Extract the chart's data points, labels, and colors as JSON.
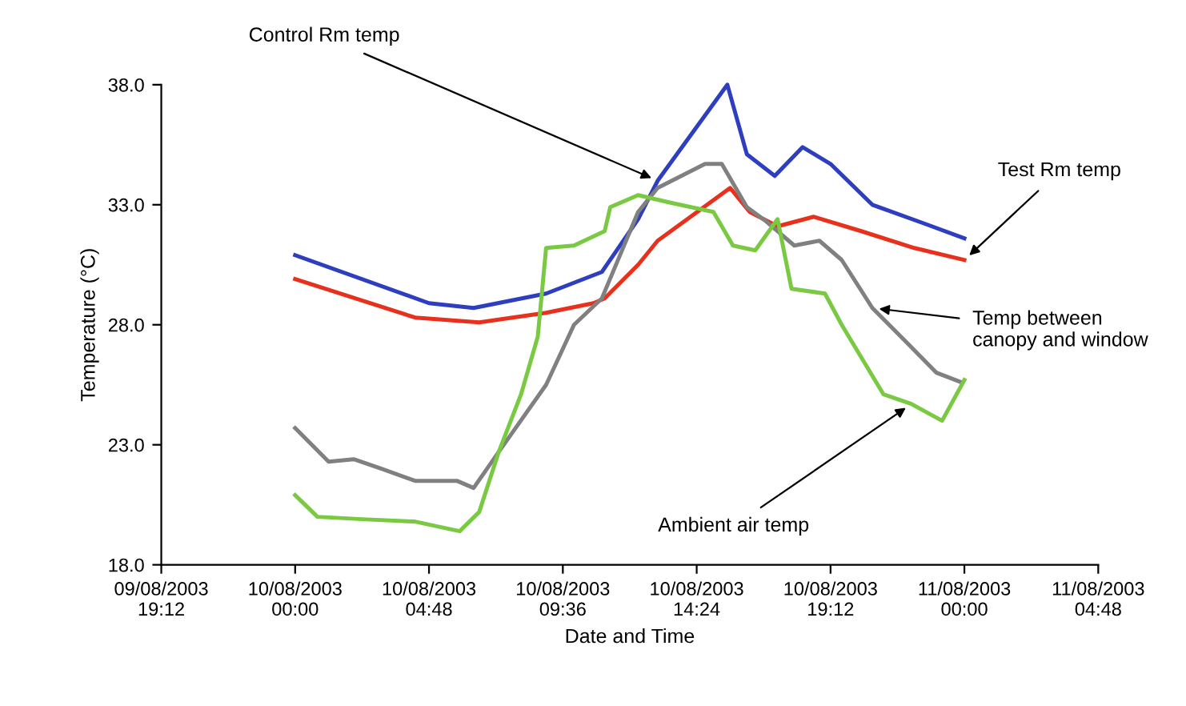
{
  "chart_data": {
    "type": "line",
    "xlabel": "Date and Time",
    "ylabel": "Temperature (°C)",
    "xlim": [
      "2003-08-09T19:12",
      "2003-08-11T04:48"
    ],
    "ylim": [
      18,
      38
    ],
    "xticks": [
      {
        "value": "2003-08-09T19:12",
        "label": "09/08/2003\n19:12"
      },
      {
        "value": "2003-08-10T00:00",
        "label": "10/08/2003\n00:00"
      },
      {
        "value": "2003-08-10T04:48",
        "label": "10/08/2003\n04:48"
      },
      {
        "value": "2003-08-10T09:36",
        "label": "10/08/2003\n09:36"
      },
      {
        "value": "2003-08-10T14:24",
        "label": "10/08/2003\n14:24"
      },
      {
        "value": "2003-08-10T19:12",
        "label": "10/08/2003\n19:12"
      },
      {
        "value": "2003-08-11T00:00",
        "label": "11/08/2003\n00:00"
      },
      {
        "value": "2003-08-11T04:48",
        "label": "11/08/2003\n04:48"
      }
    ],
    "yticks": [
      {
        "value": 18,
        "label": "18.0"
      },
      {
        "value": 23,
        "label": "23.0"
      },
      {
        "value": 28,
        "label": "28.0"
      },
      {
        "value": 33,
        "label": "33.0"
      },
      {
        "value": 38,
        "label": "38.0"
      }
    ],
    "grid": false,
    "legend": false,
    "marker": "none",
    "line_style": "solid",
    "series": [
      {
        "color": "#2d3fbf",
        "x": [
          "2003-08-10T00:00",
          "2003-08-10T04:48",
          "2003-08-10T06:24",
          "2003-08-10T09:00",
          "2003-08-10T11:00",
          "2003-08-10T12:18",
          "2003-08-10T13:00",
          "2003-08-10T15:30",
          "2003-08-10T16:12",
          "2003-08-10T17:12",
          "2003-08-10T18:12",
          "2003-08-10T19:12",
          "2003-08-10T20:42",
          "2003-08-10T22:36",
          "2003-08-11T00:00"
        ],
        "values": [
          30.9,
          28.9,
          28.7,
          29.3,
          30.2,
          32.4,
          34.0,
          38.0,
          35.1,
          34.2,
          35.4,
          34.7,
          33.0,
          32.2,
          31.6
        ]
      },
      {
        "color": "#e8311c",
        "x": [
          "2003-08-10T00:00",
          "2003-08-10T04:18",
          "2003-08-10T06:36",
          "2003-08-10T09:00",
          "2003-08-10T10:42",
          "2003-08-10T11:06",
          "2003-08-10T12:18",
          "2003-08-10T13:00",
          "2003-08-10T15:36",
          "2003-08-10T16:18",
          "2003-08-10T17:18",
          "2003-08-10T18:36",
          "2003-08-10T20:18",
          "2003-08-10T22:12",
          "2003-08-11T00:00"
        ],
        "values": [
          29.9,
          28.3,
          28.1,
          28.5,
          28.9,
          29.1,
          30.5,
          31.5,
          33.7,
          32.7,
          32.1,
          32.5,
          31.9,
          31.2,
          30.7
        ]
      },
      {
        "color": "#808080",
        "x": [
          "2003-08-10T00:00",
          "2003-08-10T01:12",
          "2003-08-10T02:06",
          "2003-08-10T03:06",
          "2003-08-10T04:18",
          "2003-08-10T05:48",
          "2003-08-10T06:24",
          "2003-08-10T07:18",
          "2003-08-10T09:00",
          "2003-08-10T10:00",
          "2003-08-10T11:00",
          "2003-08-10T12:18",
          "2003-08-10T13:00",
          "2003-08-10T14:42",
          "2003-08-10T15:18",
          "2003-08-10T16:12",
          "2003-08-10T16:54",
          "2003-08-10T17:54",
          "2003-08-10T18:48",
          "2003-08-10T19:36",
          "2003-08-10T20:42",
          "2003-08-10T21:54",
          "2003-08-10T23:00",
          "2003-08-10T23:54"
        ],
        "values": [
          23.7,
          22.3,
          22.4,
          22.0,
          21.5,
          21.5,
          21.2,
          22.7,
          25.5,
          28.0,
          29.1,
          32.7,
          33.7,
          34.7,
          34.7,
          32.9,
          32.3,
          31.3,
          31.5,
          30.7,
          28.7,
          27.3,
          26.0,
          25.6
        ]
      },
      {
        "color": "#7ac943",
        "x": [
          "2003-08-10T00:00",
          "2003-08-10T00:48",
          "2003-08-10T02:24",
          "2003-08-10T04:18",
          "2003-08-10T05:54",
          "2003-08-10T06:36",
          "2003-08-10T07:18",
          "2003-08-10T08:06",
          "2003-08-10T08:42",
          "2003-08-10T09:00",
          "2003-08-10T10:00",
          "2003-08-10T11:06",
          "2003-08-10T11:18",
          "2003-08-10T12:18",
          "2003-08-10T13:24",
          "2003-08-10T15:00",
          "2003-08-10T15:42",
          "2003-08-10T16:30",
          "2003-08-10T17:18",
          "2003-08-10T17:48",
          "2003-08-10T19:00",
          "2003-08-10T19:36",
          "2003-08-10T21:06",
          "2003-08-10T22:06",
          "2003-08-10T23:12",
          "2003-08-11T00:00"
        ],
        "values": [
          20.9,
          20.0,
          19.9,
          19.8,
          19.4,
          20.2,
          22.7,
          25.1,
          27.5,
          31.2,
          31.3,
          31.9,
          32.9,
          33.4,
          33.1,
          32.7,
          31.3,
          31.1,
          32.4,
          29.5,
          29.3,
          28.0,
          25.1,
          24.7,
          24.0,
          25.7
        ]
      }
    ],
    "annotations": [
      {
        "text": "Control Rm temp",
        "x": "2003-08-10T13:00",
        "y": 34.0
      },
      {
        "text": "Test Rm temp",
        "x": "2003-08-11T00:00",
        "y": 30.7
      },
      {
        "text": "Temp between\ncanopy and window",
        "x": "2003-08-10T20:42",
        "y": 28.7
      },
      {
        "text": "Ambient air temp",
        "x": "2003-08-10T22:06",
        "y": 24.7
      }
    ]
  }
}
